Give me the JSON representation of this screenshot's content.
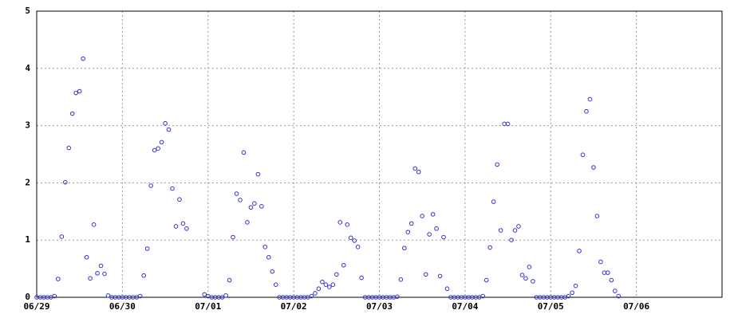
{
  "chart_data": {
    "type": "scatter",
    "x": [
      0,
      1,
      2,
      3,
      4,
      5,
      6,
      7,
      8,
      9,
      10,
      11,
      12,
      13,
      14,
      15,
      16,
      17,
      18,
      19,
      20,
      21,
      22,
      23,
      24,
      25,
      26,
      27,
      28,
      29,
      30,
      31,
      32,
      33,
      34,
      35,
      36,
      37,
      38,
      39,
      40,
      41,
      42,
      47,
      48,
      49,
      50,
      51,
      52,
      53,
      54,
      55,
      56,
      57,
      58,
      59,
      60,
      61,
      62,
      63,
      64,
      65,
      66,
      67,
      68,
      69,
      70,
      71,
      72,
      73,
      74,
      75,
      76,
      77,
      78,
      79,
      80,
      81,
      82,
      83,
      84,
      85,
      86,
      87,
      88,
      89,
      90,
      91,
      92,
      93,
      94,
      95,
      96,
      97,
      98,
      99,
      100,
      101,
      102,
      103,
      104,
      105,
      106,
      107,
      108,
      109,
      110,
      111,
      112,
      113,
      114,
      115,
      116,
      117,
      118,
      119,
      120,
      121,
      122,
      123,
      124,
      125,
      126,
      127,
      128,
      129,
      130,
      131,
      132,
      133,
      134,
      135,
      136,
      137,
      138,
      139,
      140,
      141,
      142,
      143,
      144,
      145,
      146,
      147,
      148,
      149,
      150,
      151,
      152,
      153,
      154,
      155,
      156,
      157,
      158,
      159,
      160,
      161,
      162,
      163
    ],
    "values": [
      0,
      0,
      0,
      0,
      0,
      0.02,
      0.32,
      1.06,
      2.01,
      2.61,
      3.21,
      3.57,
      3.6,
      4.17,
      0.7,
      0.33,
      1.27,
      0.42,
      0.55,
      0.41,
      0.03,
      0,
      0,
      0,
      0,
      0,
      0,
      0,
      0,
      0.02,
      0.38,
      0.85,
      1.95,
      2.57,
      2.6,
      2.71,
      3.04,
      2.93,
      1.9,
      1.24,
      1.71,
      1.29,
      1.2,
      0.05,
      0.02,
      0,
      0,
      0,
      0,
      0.03,
      0.3,
      1.05,
      1.81,
      1.7,
      2.53,
      1.31,
      1.57,
      1.64,
      2.15,
      1.59,
      0.88,
      0.7,
      0.45,
      0.22,
      0,
      0,
      0,
      0,
      0,
      0,
      0,
      0,
      0,
      0.02,
      0.07,
      0.15,
      0.27,
      0.22,
      0.18,
      0.22,
      0.4,
      1.31,
      0.56,
      1.27,
      1.04,
      0.99,
      0.88,
      0.34,
      0,
      0,
      0,
      0,
      0,
      0,
      0,
      0,
      0,
      0.01,
      0.31,
      0.86,
      1.14,
      1.29,
      2.25,
      2.19,
      1.42,
      0.4,
      1.1,
      1.45,
      1.2,
      0.37,
      1.05,
      0.15,
      0,
      0,
      0,
      0,
      0,
      0,
      0,
      0,
      0,
      0.02,
      0.3,
      0.87,
      1.67,
      2.32,
      1.17,
      3.03,
      3.03,
      1.0,
      1.17,
      1.24,
      0.39,
      0.33,
      0.53,
      0.28,
      0,
      0,
      0,
      0,
      0,
      0,
      0,
      0,
      0,
      0.02,
      0.08,
      0.2,
      0.81,
      2.49,
      3.25,
      3.46,
      2.27,
      1.42,
      0.62,
      0.43,
      0.43,
      0.3,
      0.11,
      0.02
    ],
    "color": "#3333cc",
    "xlim": [
      0,
      192
    ],
    "xticks": [
      {
        "value": 0,
        "label": "06/29"
      },
      {
        "value": 24,
        "label": "06/30"
      },
      {
        "value": 48,
        "label": "07/01"
      },
      {
        "value": 72,
        "label": "07/02"
      },
      {
        "value": 96,
        "label": "07/03"
      },
      {
        "value": 120,
        "label": "07/04"
      },
      {
        "value": 144,
        "label": "07/05"
      },
      {
        "value": 168,
        "label": "07/06"
      }
    ],
    "ylim": [
      0,
      5
    ],
    "yticks": [
      0,
      1,
      2,
      3,
      4,
      5
    ],
    "grid": true
  }
}
